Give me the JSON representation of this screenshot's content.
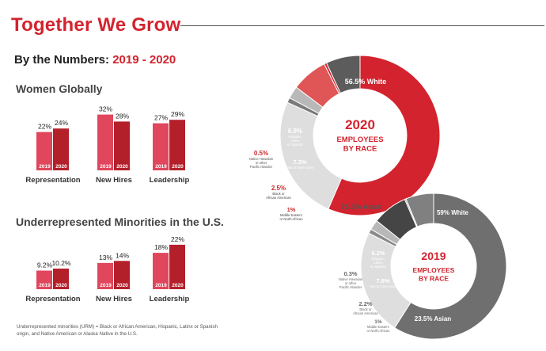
{
  "header": {
    "title": "Together We Grow",
    "subtitle_prefix": "By the Numbers: ",
    "subtitle_years": "2019 - 2020"
  },
  "colors": {
    "red": "#d3232e",
    "pink": "#e0465c",
    "dark_red": "#b3202a",
    "gray_dark": "#5c5c5c",
    "gray_mid": "#7a7a7a",
    "gray_light": "#dedede",
    "red_light": "#e05555"
  },
  "footnote": "Underrepresented minorities (URM) = Black or African American, Hispanic, Latinx or Spanish origin, and Native American or Alaska Native in the U.S.",
  "chart_data": [
    {
      "type": "bar",
      "title": "Women Globally",
      "categories": [
        "Representation",
        "New Hires",
        "Leadership"
      ],
      "series": [
        {
          "name": "2019",
          "values": [
            22,
            32,
            27
          ],
          "labels": [
            "22%",
            "32%",
            "27%"
          ]
        },
        {
          "name": "2020",
          "values": [
            24,
            28,
            29
          ],
          "labels": [
            "24%",
            "28%",
            "29%"
          ]
        }
      ],
      "unit": "%"
    },
    {
      "type": "bar",
      "title": "Underrepresented Minorities in the U.S.",
      "categories": [
        "Representation",
        "New Hires",
        "Leadership"
      ],
      "series": [
        {
          "name": "2019",
          "values": [
            9.2,
            13,
            18
          ],
          "labels": [
            "9.2%",
            "13%",
            "18%"
          ]
        },
        {
          "name": "2020",
          "values": [
            10.2,
            14,
            22
          ],
          "labels": [
            "10.2%",
            "14%",
            "22%"
          ]
        }
      ],
      "unit": "%"
    },
    {
      "type": "pie",
      "title": "2020",
      "subtitle": "EMPLOYEES BY RACE",
      "slices": [
        {
          "name": "White",
          "value": 56.5,
          "pct": "56.5%",
          "color": "#d3232e",
          "lines": []
        },
        {
          "name": "Asian",
          "value": 25.3,
          "pct": "25.3%",
          "color": "#dedede",
          "lines": []
        },
        {
          "name": "Middle Eastern or North African",
          "value": 1,
          "pct": "1%",
          "color": "#7a7a7a",
          "lines": [
            "Middle Eastern",
            "or North African"
          ]
        },
        {
          "name": "Black or African American",
          "value": 2.5,
          "pct": "2.5%",
          "color": "#b8b8b8",
          "lines": [
            "Black or",
            "African American"
          ]
        },
        {
          "name": "Two or more races",
          "value": 7.3,
          "pct": "7.3%",
          "color": "#e05555",
          "lines": [
            "Two or more races"
          ]
        },
        {
          "name": "Native Hawaiian or other Pacific Islander",
          "value": 0.5,
          "pct": "0.5%",
          "color": "#d3232e",
          "lines": [
            "Native Hawaiian",
            "or other",
            "Pacific Islander"
          ]
        },
        {
          "name": "Hispanic, Latinx or Spanish",
          "value": 6.9,
          "pct": "6.9%",
          "color": "#5c5c5c",
          "lines": [
            "Hispanic,",
            "Latinx",
            "or Spanish"
          ]
        }
      ]
    },
    {
      "type": "pie",
      "title": "2019",
      "subtitle": "EMPLOYEES BY RACE",
      "slices": [
        {
          "name": "White",
          "value": 59,
          "pct": "59%",
          "color": "#6f6f6f",
          "lines": []
        },
        {
          "name": "Asian",
          "value": 23.5,
          "pct": "23.5%",
          "color": "#dedede",
          "lines": []
        },
        {
          "name": "Middle Eastern or North African",
          "value": 1,
          "pct": "1%",
          "color": "#8a8a8a",
          "lines": [
            "Middle Eastern",
            "or North African"
          ]
        },
        {
          "name": "Black or African American",
          "value": 2.2,
          "pct": "2.2%",
          "color": "#b8b8b8",
          "lines": [
            "Black or",
            "African American"
          ]
        },
        {
          "name": "Two or more races",
          "value": 7.8,
          "pct": "7.8%",
          "color": "#454545",
          "lines": [
            "Two or more races"
          ]
        },
        {
          "name": "Native Hawaiian or other Pacific Islander",
          "value": 0.3,
          "pct": "0.3%",
          "color": "#999999",
          "lines": [
            "Native Hawaiian",
            "or other",
            "Pacific Islander"
          ]
        },
        {
          "name": "Hispanic, Latinx or Spanish",
          "value": 6.2,
          "pct": "6.2%",
          "color": "#808080",
          "lines": [
            "Hispanic,",
            "Latinx",
            "or Spanish"
          ]
        }
      ]
    }
  ]
}
